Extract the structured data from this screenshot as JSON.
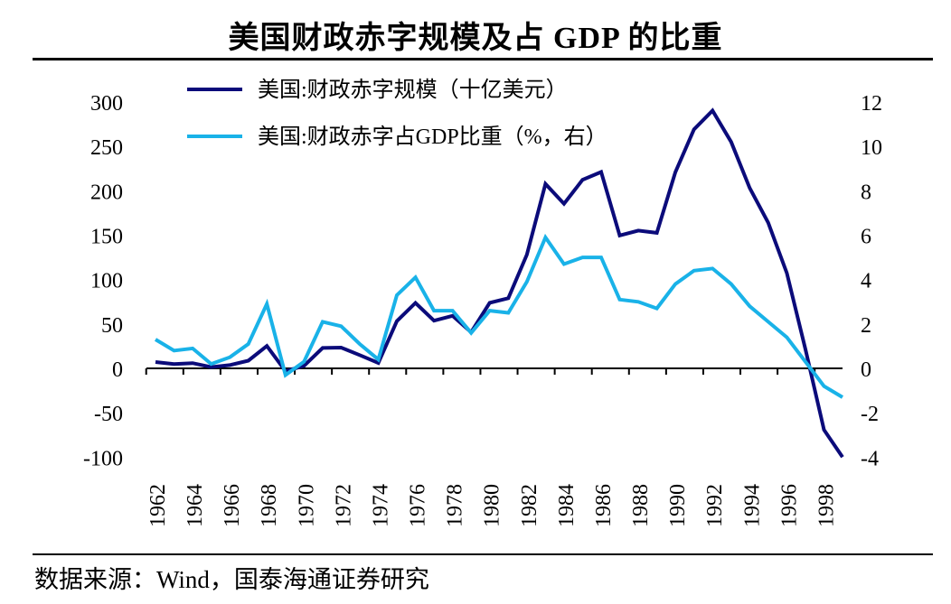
{
  "chart_data": {
    "type": "line",
    "title": "美国财政赤字规模及占 GDP 的比重",
    "source": "数据来源：Wind，国泰海通证券研究",
    "xlabel": "",
    "ylabel": "",
    "y2label": "",
    "x": [
      1962,
      1963,
      1964,
      1965,
      1966,
      1967,
      1968,
      1969,
      1970,
      1971,
      1972,
      1973,
      1974,
      1975,
      1976,
      1977,
      1978,
      1979,
      1980,
      1981,
      1982,
      1983,
      1984,
      1985,
      1986,
      1987,
      1988,
      1989,
      1990,
      1991,
      1992,
      1993,
      1994,
      1995,
      1996,
      1997,
      1998,
      1999
    ],
    "x_tick_labels": [
      "1962",
      "1964",
      "1966",
      "1968",
      "1970",
      "1972",
      "1974",
      "1976",
      "1978",
      "1980",
      "1982",
      "1984",
      "1986",
      "1988",
      "1990",
      "1992",
      "1994",
      "1996",
      "1998"
    ],
    "ylim": [
      -100,
      300
    ],
    "y_ticks": [
      300,
      250,
      200,
      150,
      100,
      50,
      0,
      -50,
      -100
    ],
    "y_tick_labels": [
      "300",
      "250",
      "200",
      "150",
      "100",
      "50",
      "0",
      "-50",
      "-100"
    ],
    "y2lim": [
      -4,
      12
    ],
    "y2_ticks": [
      12,
      10,
      8,
      6,
      4,
      2,
      0,
      -2,
      -4
    ],
    "y2_tick_labels": [
      "12",
      "10",
      "8",
      "6",
      "4",
      "2",
      "0",
      "-2",
      "-4"
    ],
    "grid": false,
    "legend_position": "top-center",
    "series": [
      {
        "name": "美国:财政赤字规模（十亿美元）",
        "axis": "left",
        "color": "#0B0B7A",
        "values": [
          7.1,
          4.8,
          5.9,
          1.4,
          3.7,
          8.6,
          25.2,
          -3.2,
          2.8,
          23.0,
          23.4,
          14.9,
          6.1,
          53.2,
          73.7,
          53.7,
          59.2,
          40.7,
          73.8,
          79.0,
          128.0,
          207.8,
          185.4,
          212.3,
          221.2,
          149.7,
          155.2,
          152.6,
          221.0,
          269.2,
          290.3,
          255.1,
          203.2,
          164.0,
          107.4,
          21.9,
          -69.3,
          -100.0
        ]
      },
      {
        "name": "美国:财政赤字占GDP比重（%，右）",
        "axis": "right",
        "color": "#19B2E8",
        "values": [
          1.3,
          0.8,
          0.9,
          0.2,
          0.5,
          1.1,
          2.9,
          -0.3,
          0.3,
          2.1,
          1.9,
          1.1,
          0.4,
          3.3,
          4.1,
          2.6,
          2.6,
          1.6,
          2.6,
          2.5,
          3.9,
          5.9,
          4.7,
          5.0,
          5.0,
          3.1,
          3.0,
          2.7,
          3.8,
          4.4,
          4.5,
          3.8,
          2.8,
          2.1,
          1.4,
          0.3,
          -0.8,
          -1.3
        ]
      }
    ]
  }
}
